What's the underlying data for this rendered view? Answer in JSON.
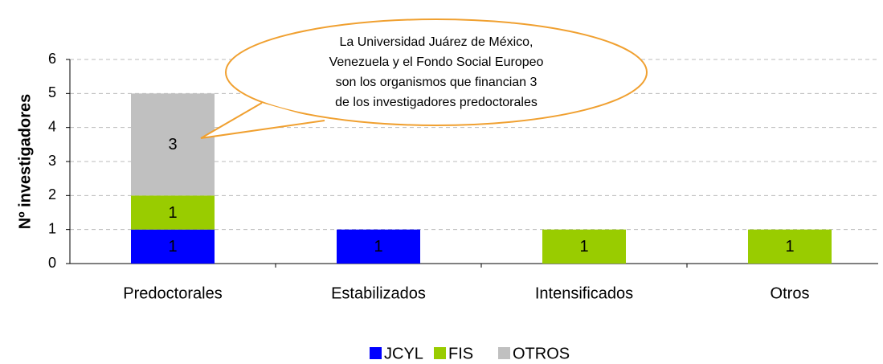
{
  "chart_data": {
    "type": "stacked_bar",
    "y_label": "Nº investigadores",
    "categories": [
      "Predoctorales",
      "Estabilizados",
      "Intensificados",
      "Otros"
    ],
    "series": [
      {
        "name": "JCYL",
        "color": "#0000ff",
        "values": [
          1,
          1,
          null,
          null
        ]
      },
      {
        "name": "FIS",
        "color": "#99cc00",
        "values": [
          1,
          null,
          1,
          1
        ]
      },
      {
        "name": "OTROS",
        "color": "#c0c0c0",
        "values": [
          3,
          null,
          null,
          null
        ]
      }
    ],
    "ylim": [
      0,
      6
    ],
    "yticks": [
      0,
      1,
      2,
      3,
      4,
      5,
      6
    ],
    "grid": true,
    "legend": "bottom",
    "annotation": [
      "La Universidad Juárez de México,",
      "Venezuela y el Fondo Social Europeo",
      "son los organismos que financian 3",
      "de los investigadores predoctorales"
    ]
  }
}
